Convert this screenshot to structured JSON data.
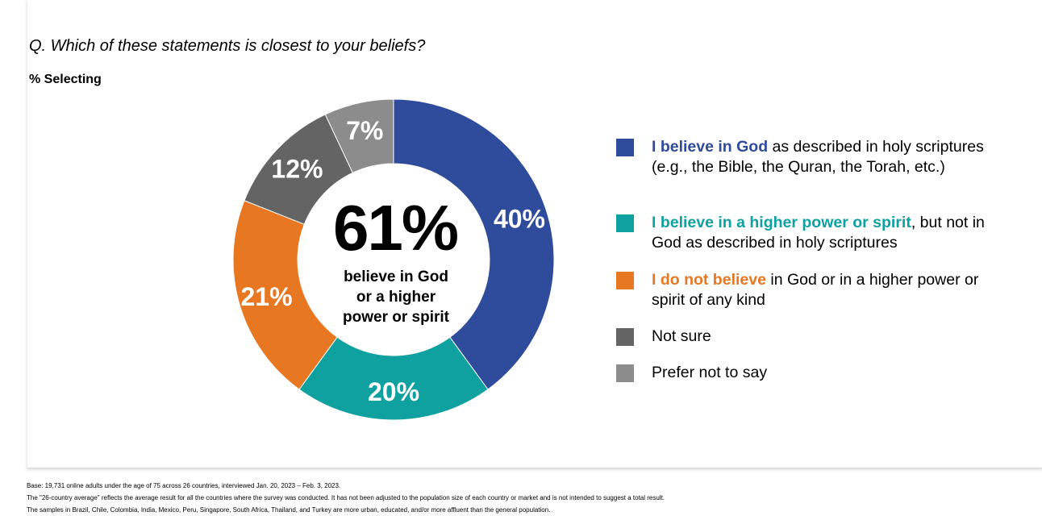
{
  "question": "Q. Which of these statements is closest to your beliefs?",
  "subtitle": "% Selecting",
  "center": {
    "value": "61%",
    "caption_lines": [
      "believe in God",
      "or a higher",
      "power or spirit"
    ]
  },
  "chart_data": {
    "type": "pie",
    "donut": true,
    "title": "Q. Which of these statements is closest to your beliefs?",
    "subtitle": "% Selecting",
    "legend_position": "right",
    "slices": [
      {
        "label": "I believe in God as described in holy scriptures (e.g., the Bible, the Quran, the Torah, etc.)",
        "value": 40,
        "display": "40%",
        "color": "#2e4b9c"
      },
      {
        "label": "I believe in a higher power or spirit, but not in God as described in holy scriptures",
        "value": 20,
        "display": "20%",
        "color": "#0fa0a0"
      },
      {
        "label": "I do not believe in God or in a higher power or spirit of any kind",
        "value": 21,
        "display": "21%",
        "color": "#e87722"
      },
      {
        "label": "Not sure",
        "value": 12,
        "display": "12%",
        "color": "#646464"
      },
      {
        "label": "Prefer not to say",
        "value": 7,
        "display": "7%",
        "color": "#8c8c8c"
      }
    ]
  },
  "legend": [
    {
      "highlight": "I believe in God",
      "rest": " as described in holy scriptures (e.g., the Bible, the Quran, the Torah, etc.)",
      "color": "#2e4b9c"
    },
    {
      "highlight": "I believe in a higher power or spirit",
      "rest": ", but not in God as described in holy scriptures",
      "color": "#0fa0a0"
    },
    {
      "highlight": "I do not believe",
      "rest": " in God or in a higher power or spirit of any kind",
      "color": "#e87722"
    },
    {
      "highlight": "",
      "rest": "Not sure",
      "color": "#646464"
    },
    {
      "highlight": "",
      "rest": "Prefer not to say",
      "color": "#8c8c8c"
    }
  ],
  "footnotes": [
    "Base: 19,731 online adults under the age of 75 across 26 countries, interviewed Jan. 20, 2023 – Feb. 3, 2023.",
    "The \"26-country average\" reflects the average result for all the countries where the survey was conducted. It has not been adjusted to the population size of each country or market and is not intended to suggest a total result.",
    "The samples in Brazil, Chile, Colombia, India, Mexico, Peru, Singapore, South Africa, Thailand, and Turkey are more urban, educated, and/or more affluent than the general population."
  ]
}
